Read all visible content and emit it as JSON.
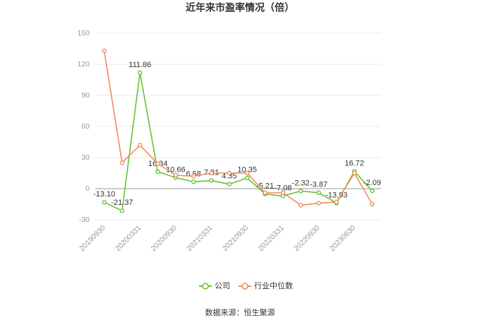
{
  "chart_data": {
    "type": "line",
    "title": "近年来市盈率情况（倍）",
    "categories": [
      "20190930",
      null,
      "20200331",
      null,
      "20200930",
      null,
      "20210331",
      null,
      "20210930",
      null,
      "20220331",
      null,
      "20220930",
      null,
      "20230630",
      null
    ],
    "series": [
      {
        "name": "公司",
        "color": "#67c23a",
        "values": [
          -13.1,
          -21.37,
          111.86,
          16.34,
          10.66,
          6.58,
          7.81,
          4.35,
          10.35,
          -5.21,
          -7.08,
          -2.32,
          -3.87,
          -13.93,
          16.72,
          -2.09
        ],
        "value_labels": [
          "-13.10",
          "-21.37",
          "111.86",
          "16.34",
          "10.66",
          "6.58",
          "7.81",
          "4.35",
          "10.35",
          "-5.21",
          "-7.08",
          "-2.32",
          "-3.87",
          "-13.93",
          "16.72",
          "-2.09"
        ]
      },
      {
        "name": "行业中位数",
        "color": "#f28c5c",
        "values": [
          133,
          25,
          42,
          24,
          13,
          12,
          15,
          15,
          15,
          -4,
          -4,
          -16,
          -14,
          -13,
          15,
          -15
        ]
      }
    ],
    "ylim": [
      -30,
      150
    ],
    "yticks": [
      -30,
      0,
      30,
      60,
      90,
      120,
      150
    ],
    "grid": true,
    "source": "数据来源：恒生聚源"
  }
}
